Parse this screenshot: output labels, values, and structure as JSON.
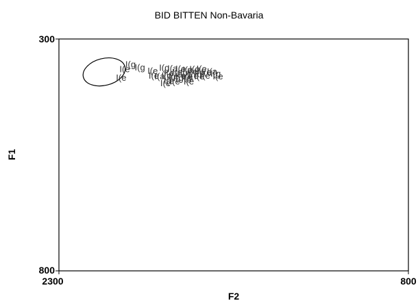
{
  "chart_data": {
    "type": "scatter",
    "title": "BID BITTEN Non-Bavaria",
    "xlabel": "F2",
    "ylabel": "F1",
    "xlim": [
      2300,
      800
    ],
    "ylim": [
      300,
      800
    ],
    "x_tick_labels": [
      "2300",
      "800"
    ],
    "y_tick_labels": [
      "300",
      "800"
    ],
    "grid": false,
    "legend": "none",
    "point_labels": [
      "I(e",
      "I(g",
      "I(e",
      "I(g",
      "I(a",
      "I(e",
      "I(a",
      "I(g",
      "I(e",
      "I(e",
      "I(e",
      "I(e",
      "I(e",
      "I(g",
      "I(e",
      "I(a",
      "I(g",
      "I(e",
      "I(e",
      "I(a",
      "I(g",
      "I(e",
      "I(e",
      "I(e",
      "I(e",
      "I(e",
      "I(e",
      "I(g",
      "I(g",
      "I(e",
      "I(e",
      "I(e",
      "I(g",
      "I(e",
      "I(e"
    ],
    "points": [
      {
        "label": "I(e",
        "x": 2040,
        "y": 366
      },
      {
        "label": "I(g",
        "x": 1975,
        "y": 362
      },
      {
        "label": "I(e",
        "x": 1920,
        "y": 369
      },
      {
        "label": "I(g",
        "x": 1870,
        "y": 363
      },
      {
        "label": "I(a",
        "x": 1835,
        "y": 364
      },
      {
        "label": "I(e",
        "x": 1800,
        "y": 365
      },
      {
        "label": "I(a",
        "x": 1770,
        "y": 367
      },
      {
        "label": "I(g",
        "x": 1740,
        "y": 366
      },
      {
        "label": "I(e",
        "x": 1710,
        "y": 365
      },
      {
        "label": "I(e",
        "x": 1850,
        "y": 374
      },
      {
        "label": "I(e",
        "x": 1815,
        "y": 372
      },
      {
        "label": "I(e",
        "x": 1780,
        "y": 373
      },
      {
        "label": "I(e",
        "x": 1750,
        "y": 371
      },
      {
        "label": "I(g",
        "x": 1720,
        "y": 373
      },
      {
        "label": "I(e",
        "x": 1690,
        "y": 372
      },
      {
        "label": "I(a",
        "x": 1665,
        "y": 371
      },
      {
        "label": "I(g",
        "x": 1650,
        "y": 375
      },
      {
        "label": "I(e",
        "x": 1640,
        "y": 381
      },
      {
        "label": "I(e",
        "x": 1915,
        "y": 380
      },
      {
        "label": "I(a",
        "x": 1890,
        "y": 381
      },
      {
        "label": "I(g",
        "x": 1860,
        "y": 380
      },
      {
        "label": "I(e",
        "x": 1830,
        "y": 381
      },
      {
        "label": "I(e",
        "x": 1800,
        "y": 380
      },
      {
        "label": "I(e",
        "x": 1770,
        "y": 382
      },
      {
        "label": "I(e",
        "x": 1745,
        "y": 380
      },
      {
        "label": "I(e",
        "x": 1720,
        "y": 381
      },
      {
        "label": "I(e",
        "x": 1695,
        "y": 380
      },
      {
        "label": "I(g",
        "x": 1810,
        "y": 385
      },
      {
        "label": "I(g",
        "x": 1775,
        "y": 384
      },
      {
        "label": "I(e",
        "x": 1850,
        "y": 391
      },
      {
        "label": "I(e",
        "x": 1825,
        "y": 392
      },
      {
        "label": "I(e",
        "x": 1765,
        "y": 392
      },
      {
        "label": "I(g",
        "x": 2015,
        "y": 355
      },
      {
        "label": "I(e",
        "x": 2055,
        "y": 384
      },
      {
        "label": "I(e",
        "x": 1865,
        "y": 396
      }
    ],
    "ellipse": {
      "cx": 2106,
      "cy": 371,
      "rx": 92,
      "ry": 29
    }
  }
}
